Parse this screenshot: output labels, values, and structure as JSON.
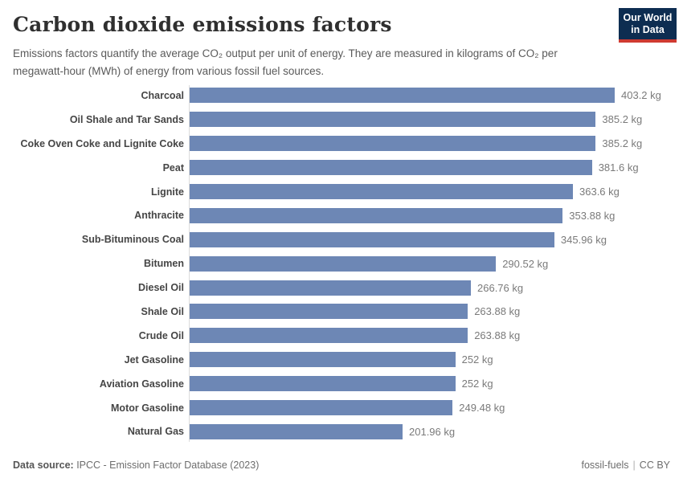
{
  "header": {
    "title": "Carbon dioxide emissions factors",
    "subtitle": "Emissions factors quantify the average CO₂ output per unit of energy. They are measured in kilograms of CO₂ per megawatt-hour (MWh) of energy from various fossil fuel sources.",
    "logo": {
      "line1": "Our World",
      "line2": "in Data"
    }
  },
  "chart_data": {
    "type": "bar",
    "orientation": "horizontal",
    "unit": "kg CO₂ per MWh",
    "categories": [
      "Charcoal",
      "Oil Shale and Tar Sands",
      "Coke Oven Coke and Lignite Coke",
      "Peat",
      "Lignite",
      "Anthracite",
      "Sub-Bituminous Coal",
      "Bitumen",
      "Diesel Oil",
      "Shale Oil",
      "Crude Oil",
      "Jet Gasoline",
      "Aviation Gasoline",
      "Motor Gasoline",
      "Natural Gas"
    ],
    "values": [
      403.2,
      385.2,
      385.2,
      381.6,
      363.6,
      353.88,
      345.96,
      290.52,
      266.76,
      263.88,
      263.88,
      252,
      252,
      249.48,
      201.96
    ],
    "value_labels": [
      "403.2 kg",
      "385.2 kg",
      "385.2 kg",
      "381.6 kg",
      "363.6 kg",
      "353.88 kg",
      "345.96 kg",
      "290.52 kg",
      "266.76 kg",
      "263.88 kg",
      "263.88 kg",
      "252 kg",
      "252 kg",
      "249.48 kg",
      "201.96 kg"
    ],
    "xlim": [
      0,
      403.2
    ],
    "grid": false,
    "legend": "none",
    "bar_color": "#6d87b5"
  },
  "footer": {
    "source_label": "Data source:",
    "source_text": " IPCC - Emission Factor Database (2023)",
    "right_link": "fossil-fuels",
    "separator": "|",
    "license": "CC BY"
  },
  "colors": {
    "bar": "#6d87b5",
    "logo_navy": "#0d2d51",
    "logo_red": "#cf3a31",
    "title_text": "#2f2f2f",
    "subtitle_text": "#5a5a5a",
    "axis_line": "#dcdcdc"
  }
}
